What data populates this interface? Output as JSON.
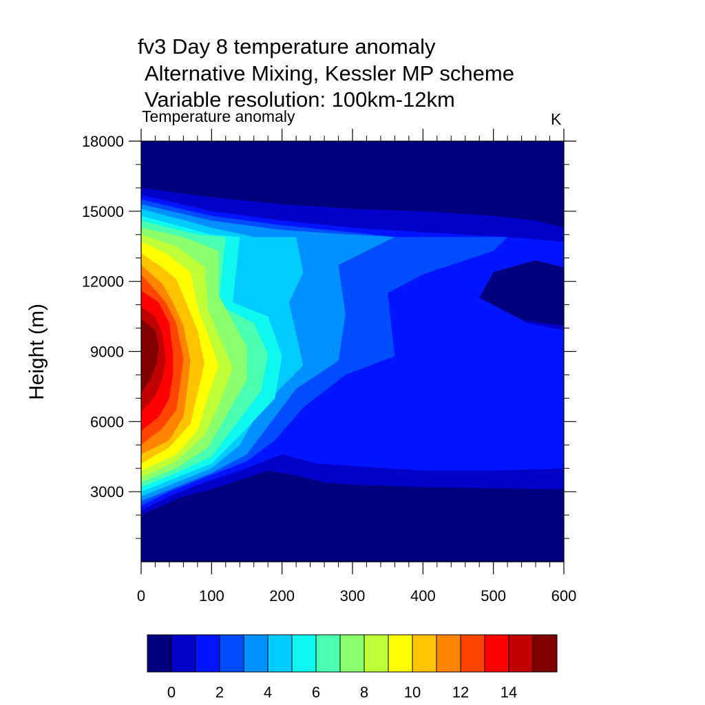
{
  "title_lines": [
    "fv3 Day 8 temperature anomaly",
    "Alternative Mixing, Kessler MP scheme",
    "Variable resolution: 100km-12km"
  ],
  "left_string": "Temperature anomaly",
  "right_string": "K",
  "chart_data": {
    "type": "heatmap",
    "subtype": "filled-contour",
    "title": "fv3 Day 8 temperature anomaly / Alternative Mixing, Kessler MP scheme / Variable resolution: 100km-12km",
    "variable": "Temperature anomaly",
    "units": "K",
    "xlabel": "",
    "ylabel": "Height (m)",
    "xlim": [
      0,
      600
    ],
    "ylim": [
      0,
      18000
    ],
    "x_ticks": [
      0,
      100,
      200,
      300,
      400,
      500,
      600
    ],
    "x_tick_labels": [
      "0",
      "100",
      "200",
      "300",
      "400",
      "500",
      "600"
    ],
    "y_ticks": [
      3000,
      6000,
      9000,
      12000,
      15000,
      18000
    ],
    "y_tick_labels": [
      "3000",
      "6000",
      "9000",
      "12000",
      "15000",
      "18000"
    ],
    "grid": false,
    "contour_levels": [
      0,
      1,
      2,
      3,
      4,
      5,
      6,
      7,
      8,
      9,
      10,
      11,
      12,
      13,
      14,
      15
    ],
    "colorbar": {
      "placement": "bottom",
      "colors": [
        "#00007f",
        "#0000c8",
        "#0014ff",
        "#004cff",
        "#0090ff",
        "#00ccff",
        "#0ff8f0",
        "#4affaf",
        "#8cff6c",
        "#c0ff36",
        "#ffff00",
        "#ffc400",
        "#ff8400",
        "#ff4400",
        "#ff0000",
        "#c10000",
        "#7f0000"
      ],
      "label_values": [
        0,
        2,
        4,
        6,
        8,
        10,
        12,
        14
      ],
      "labels": [
        "0",
        "2",
        "4",
        "6",
        "8",
        "10",
        "12",
        "14"
      ]
    },
    "contour_outlines": [
      {
        "level": 0,
        "points": [
          [
            0,
            1800
          ],
          [
            20,
            2100
          ],
          [
            50,
            2700
          ],
          [
            100,
            2900
          ],
          [
            150,
            3300
          ],
          [
            180,
            3500
          ],
          [
            220,
            3300
          ],
          [
            260,
            3000
          ],
          [
            300,
            2850
          ],
          [
            400,
            2800
          ],
          [
            500,
            2750
          ],
          [
            600,
            2600
          ],
          [
            600,
            15200
          ],
          [
            560,
            15500
          ],
          [
            500,
            15700
          ],
          [
            400,
            15800
          ],
          [
            300,
            15850
          ],
          [
            100,
            16000
          ],
          [
            0,
            16100
          ]
        ]
      },
      {
        "level": 1,
        "points": [
          [
            0,
            2000
          ],
          [
            30,
            2400
          ],
          [
            60,
            2800
          ],
          [
            100,
            3100
          ],
          [
            150,
            3600
          ],
          [
            180,
            3900
          ],
          [
            220,
            3700
          ],
          [
            260,
            3400
          ],
          [
            300,
            3300
          ],
          [
            400,
            3200
          ],
          [
            500,
            3150
          ],
          [
            600,
            3100
          ],
          [
            600,
            13500
          ],
          [
            560,
            13100
          ],
          [
            500,
            12800
          ],
          [
            450,
            11300
          ],
          [
            500,
            10500
          ],
          [
            600,
            10100
          ],
          [
            600,
            14300
          ],
          [
            560,
            14600
          ],
          [
            500,
            14800
          ],
          [
            400,
            15000
          ],
          [
            300,
            15100
          ],
          [
            200,
            15300
          ],
          [
            100,
            15600
          ],
          [
            0,
            16000
          ]
        ]
      },
      {
        "level": 2,
        "points": [
          [
            0,
            2200
          ],
          [
            40,
            2800
          ],
          [
            80,
            3300
          ],
          [
            140,
            3900
          ],
          [
            200,
            4600
          ],
          [
            250,
            4200
          ],
          [
            300,
            4100
          ],
          [
            400,
            3900
          ],
          [
            500,
            3900
          ],
          [
            600,
            4000
          ],
          [
            600,
            9900
          ],
          [
            550,
            10200
          ],
          [
            480,
            11300
          ],
          [
            500,
            12400
          ],
          [
            560,
            12900
          ],
          [
            600,
            12600
          ],
          [
            600,
            13700
          ],
          [
            520,
            13900
          ],
          [
            400,
            14100
          ],
          [
            300,
            14300
          ],
          [
            200,
            14600
          ],
          [
            100,
            15000
          ],
          [
            0,
            15700
          ]
        ]
      },
      {
        "level": 3,
        "points": [
          [
            0,
            2400
          ],
          [
            40,
            3000
          ],
          [
            90,
            3600
          ],
          [
            150,
            4300
          ],
          [
            190,
            5200
          ],
          [
            230,
            6600
          ],
          [
            290,
            8000
          ],
          [
            360,
            8800
          ],
          [
            350,
            11500
          ],
          [
            400,
            12300
          ],
          [
            500,
            13300
          ],
          [
            520,
            13900
          ],
          [
            360,
            13900
          ],
          [
            300,
            14100
          ],
          [
            200,
            14400
          ],
          [
            100,
            14800
          ],
          [
            0,
            15500
          ]
        ]
      },
      {
        "level": 4,
        "points": [
          [
            0,
            2600
          ],
          [
            50,
            3200
          ],
          [
            100,
            3800
          ],
          [
            150,
            4600
          ],
          [
            180,
            5800
          ],
          [
            220,
            7400
          ],
          [
            280,
            8600
          ],
          [
            290,
            10600
          ],
          [
            280,
            12700
          ],
          [
            360,
            13900
          ],
          [
            300,
            14000
          ],
          [
            200,
            14200
          ],
          [
            100,
            14600
          ],
          [
            0,
            15300
          ]
        ]
      },
      {
        "level": 5,
        "points": [
          [
            0,
            2800
          ],
          [
            50,
            3400
          ],
          [
            100,
            4000
          ],
          [
            140,
            5000
          ],
          [
            170,
            6600
          ],
          [
            230,
            8400
          ],
          [
            210,
            11100
          ],
          [
            230,
            12400
          ],
          [
            220,
            13900
          ],
          [
            160,
            13900
          ],
          [
            100,
            14300
          ],
          [
            0,
            15100
          ]
        ]
      },
      {
        "level": 6,
        "points": [
          [
            0,
            3000
          ],
          [
            50,
            3600
          ],
          [
            100,
            4200
          ],
          [
            140,
            5400
          ],
          [
            190,
            7000
          ],
          [
            200,
            8800
          ],
          [
            180,
            10500
          ],
          [
            130,
            11100
          ],
          [
            140,
            13900
          ],
          [
            100,
            14000
          ],
          [
            0,
            14800
          ]
        ]
      },
      {
        "level": 7,
        "points": [
          [
            0,
            3200
          ],
          [
            50,
            3800
          ],
          [
            100,
            4500
          ],
          [
            130,
            5700
          ],
          [
            170,
            7300
          ],
          [
            180,
            8900
          ],
          [
            160,
            10200
          ],
          [
            110,
            11000
          ],
          [
            120,
            13900
          ],
          [
            80,
            14000
          ],
          [
            0,
            14600
          ]
        ]
      },
      {
        "level": 8,
        "points": [
          [
            0,
            3400
          ],
          [
            50,
            4000
          ],
          [
            95,
            4900
          ],
          [
            120,
            6200
          ],
          [
            150,
            7800
          ],
          [
            150,
            9200
          ],
          [
            130,
            10300
          ],
          [
            110,
            11400
          ],
          [
            110,
            13300
          ],
          [
            60,
            13900
          ],
          [
            0,
            14300
          ]
        ]
      },
      {
        "level": 9,
        "points": [
          [
            0,
            3600
          ],
          [
            50,
            4300
          ],
          [
            90,
            5400
          ],
          [
            110,
            6700
          ],
          [
            130,
            8300
          ],
          [
            110,
            9700
          ],
          [
            95,
            10800
          ],
          [
            90,
            12600
          ],
          [
            50,
            13500
          ],
          [
            0,
            14000
          ]
        ]
      },
      {
        "level": 10,
        "points": [
          [
            0,
            3900
          ],
          [
            50,
            4600
          ],
          [
            80,
            5600
          ],
          [
            95,
            7100
          ],
          [
            110,
            8400
          ],
          [
            95,
            9700
          ],
          [
            80,
            10900
          ],
          [
            70,
            12400
          ],
          [
            35,
            13200
          ],
          [
            0,
            13700
          ]
        ]
      },
      {
        "level": 11,
        "points": [
          [
            0,
            4200
          ],
          [
            40,
            4900
          ],
          [
            70,
            5900
          ],
          [
            80,
            7200
          ],
          [
            90,
            8500
          ],
          [
            80,
            9900
          ],
          [
            65,
            11000
          ],
          [
            50,
            12100
          ],
          [
            25,
            12700
          ],
          [
            0,
            13200
          ]
        ]
      },
      {
        "level": 12,
        "points": [
          [
            0,
            4600
          ],
          [
            40,
            5200
          ],
          [
            60,
            6200
          ],
          [
            65,
            7300
          ],
          [
            70,
            8600
          ],
          [
            60,
            10100
          ],
          [
            45,
            11100
          ],
          [
            30,
            11900
          ],
          [
            0,
            12700
          ]
        ]
      },
      {
        "level": 13,
        "points": [
          [
            0,
            5000
          ],
          [
            30,
            5700
          ],
          [
            50,
            6500
          ],
          [
            55,
            7500
          ],
          [
            60,
            8700
          ],
          [
            50,
            10200
          ],
          [
            35,
            11100
          ],
          [
            15,
            11800
          ],
          [
            0,
            12300
          ]
        ]
      },
      {
        "level": 14,
        "points": [
          [
            0,
            5600
          ],
          [
            25,
            6200
          ],
          [
            40,
            7000
          ],
          [
            45,
            8000
          ],
          [
            45,
            8900
          ],
          [
            40,
            10200
          ],
          [
            25,
            11100
          ],
          [
            0,
            11600
          ]
        ]
      },
      {
        "level": 15,
        "points": [
          [
            0,
            6400
          ],
          [
            20,
            7100
          ],
          [
            30,
            7800
          ],
          [
            35,
            8600
          ],
          [
            30,
            9800
          ],
          [
            20,
            10500
          ],
          [
            0,
            10900
          ]
        ]
      },
      {
        "level": 16,
        "points": [
          [
            0,
            7200
          ],
          [
            15,
            7900
          ],
          [
            22,
            8500
          ],
          [
            25,
            9200
          ],
          [
            20,
            9900
          ],
          [
            0,
            10400
          ]
        ]
      }
    ]
  }
}
